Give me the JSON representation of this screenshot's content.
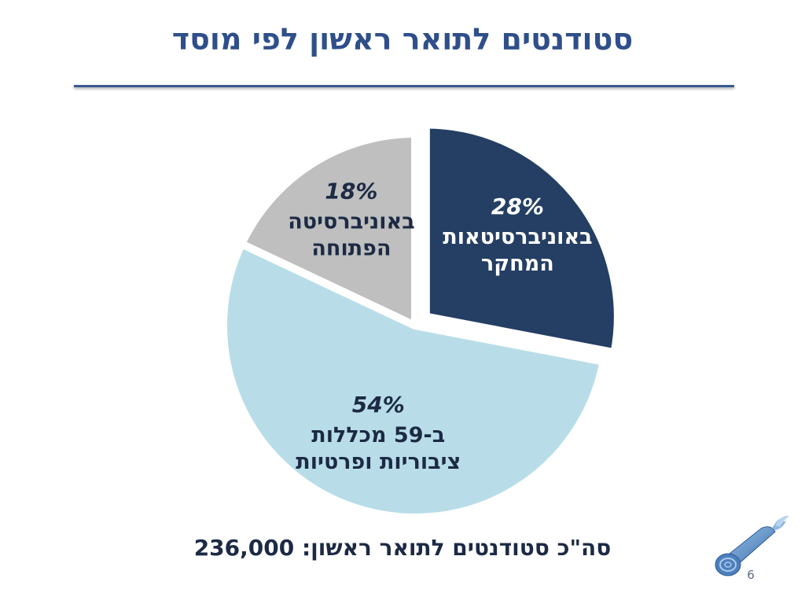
{
  "slide": {
    "title": "סטודנטים לתואר ראשון לפי מוסד",
    "total_text": "סה\"כ סטודנטים לתואר ראשון: 236,000",
    "page_number": "6"
  },
  "chart_data": {
    "type": "pie",
    "title": "סטודנטים לתואר ראשון לפי מוסד",
    "slices": [
      {
        "value": 28,
        "percent_label": "28%",
        "label_lines": [
          "באוניברסיטאות",
          "המחקר"
        ],
        "color": "#243f63",
        "text_color": "#ffffff",
        "exploded": true
      },
      {
        "value": 54,
        "percent_label": "54%",
        "label_lines": [
          "ב-59 מכללות",
          "ציבוריות ופרטיות"
        ],
        "color": "#b8dde8",
        "text_color": "#1c2a44",
        "exploded": false
      },
      {
        "value": 18,
        "percent_label": "18%",
        "label_lines": [
          "באוניברסיטה",
          "הפתוחה"
        ],
        "color": "#bfbfbf",
        "text_color": "#1c2a44",
        "exploded": false
      }
    ],
    "total": "236,000",
    "legend": "none",
    "start_angle": "12 o'clock, clockwise"
  },
  "colors": {
    "title": "#2f4f8a",
    "rule": "#3a5a92",
    "text": "#1c2a44"
  },
  "logo": {
    "icon": "scroll-icon"
  }
}
